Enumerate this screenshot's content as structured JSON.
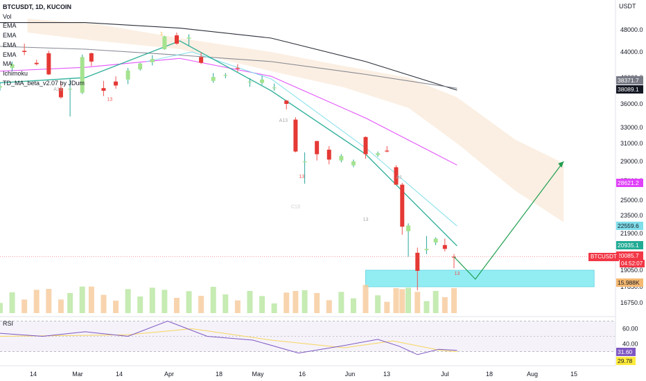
{
  "legend": {
    "title": "BTCUSDT, 1D, KUCOIN",
    "lines": [
      "Vol",
      "EMA",
      "EMA",
      "EMA",
      "EMA",
      "MA",
      "Ichimoku",
      "TD_MA_beta_v2.07 by JDum"
    ]
  },
  "price_axis": {
    "unit": "USDT",
    "ticks": [
      "48000.0",
      "44000.0",
      "40000.0",
      "36000.0",
      "33000.0",
      "31000.0",
      "29000.0",
      "27000.0",
      "25000.0",
      "23500.0",
      "21900.0",
      "19050.0",
      "17850.0",
      "16750.0"
    ]
  },
  "time_axis": {
    "ticks": [
      "14",
      "Mar",
      "14",
      "Apr",
      "18",
      "May",
      "16",
      "Jun",
      "13",
      "Jul",
      "18",
      "Aug",
      "15"
    ]
  },
  "price_badges": [
    {
      "label": "38371.7",
      "color": "#787b86"
    },
    {
      "label": "38089.1",
      "color": "#131722"
    },
    {
      "label": "28621.2",
      "color": "#e040fb"
    },
    {
      "label": "22559.6",
      "color": "#80deea"
    },
    {
      "label": "20935.1",
      "color": "#22ab94"
    },
    {
      "label": "20085.7",
      "color": "#f23645"
    },
    {
      "label": "15.988K",
      "color": "#f5b971"
    }
  ],
  "countdown": "04:52:07",
  "symbol_badge": "BTCUSDT",
  "rsi": {
    "label": "RSI",
    "ticks": [
      "60.00",
      "40.00"
    ],
    "badges": [
      {
        "label": "31.60",
        "color": "#7e57c2"
      },
      {
        "label": "29.78",
        "color": "#ffeb3b"
      }
    ]
  },
  "annotations": [
    "13",
    "13",
    "13",
    "A13",
    "A13",
    "C13",
    "A1",
    "1",
    "13"
  ],
  "chart_data": {
    "type": "candlestick",
    "title": "BTCUSDT, 1D, KUCOIN",
    "y_unit": "USDT",
    "ylim": [
      16500,
      50500
    ],
    "x_range": [
      "2022-02-01",
      "2022-08-20"
    ],
    "candles": [
      {
        "d": "2022-02-01",
        "o": 38500,
        "h": 39300,
        "l": 38000,
        "c": 38700
      },
      {
        "d": "2022-02-05",
        "o": 41500,
        "h": 42500,
        "l": 41000,
        "c": 42100
      },
      {
        "d": "2022-02-09",
        "o": 44200,
        "h": 45500,
        "l": 43500,
        "c": 44000
      },
      {
        "d": "2022-02-13",
        "o": 42300,
        "h": 42800,
        "l": 41900,
        "c": 42100
      },
      {
        "d": "2022-02-17",
        "o": 43800,
        "h": 44200,
        "l": 40400,
        "c": 40500
      },
      {
        "d": "2022-02-21",
        "o": 38400,
        "h": 39400,
        "l": 36800,
        "c": 37000
      },
      {
        "d": "2022-02-24",
        "o": 38300,
        "h": 39800,
        "l": 34400,
        "c": 38300
      },
      {
        "d": "2022-02-28",
        "o": 37700,
        "h": 43600,
        "l": 37500,
        "c": 43200
      },
      {
        "d": "2022-03-03",
        "o": 43800,
        "h": 43900,
        "l": 41800,
        "c": 42500
      },
      {
        "d": "2022-03-07",
        "o": 38400,
        "h": 39500,
        "l": 37200,
        "c": 38000
      },
      {
        "d": "2022-03-11",
        "o": 39400,
        "h": 40200,
        "l": 38300,
        "c": 38800
      },
      {
        "d": "2022-03-15",
        "o": 39700,
        "h": 41500,
        "l": 39000,
        "c": 41100
      },
      {
        "d": "2022-03-19",
        "o": 41300,
        "h": 42300,
        "l": 41100,
        "c": 42200
      },
      {
        "d": "2022-03-23",
        "o": 42400,
        "h": 43500,
        "l": 41900,
        "c": 42900
      },
      {
        "d": "2022-03-27",
        "o": 44500,
        "h": 46900,
        "l": 44400,
        "c": 46800
      },
      {
        "d": "2022-03-31",
        "o": 47000,
        "h": 47500,
        "l": 45300,
        "c": 45500
      },
      {
        "d": "2022-04-04",
        "o": 46400,
        "h": 47200,
        "l": 45100,
        "c": 46600
      },
      {
        "d": "2022-04-08",
        "o": 43200,
        "h": 43900,
        "l": 42100,
        "c": 42300
      },
      {
        "d": "2022-04-12",
        "o": 39500,
        "h": 40700,
        "l": 39200,
        "c": 40100
      },
      {
        "d": "2022-04-16",
        "o": 40400,
        "h": 40700,
        "l": 39900,
        "c": 40400
      },
      {
        "d": "2022-04-20",
        "o": 41500,
        "h": 42100,
        "l": 40900,
        "c": 41400
      },
      {
        "d": "2022-04-24",
        "o": 39400,
        "h": 39900,
        "l": 38600,
        "c": 39400
      },
      {
        "d": "2022-04-28",
        "o": 39200,
        "h": 40300,
        "l": 38900,
        "c": 39700
      },
      {
        "d": "2022-05-02",
        "o": 38500,
        "h": 39100,
        "l": 38000,
        "c": 38500
      },
      {
        "d": "2022-05-06",
        "o": 36500,
        "h": 36600,
        "l": 35300,
        "c": 36000
      },
      {
        "d": "2022-05-09",
        "o": 34000,
        "h": 34300,
        "l": 30000,
        "c": 30100
      },
      {
        "d": "2022-05-12",
        "o": 29000,
        "h": 30000,
        "l": 26700,
        "c": 29000
      },
      {
        "d": "2022-05-16",
        "o": 31300,
        "h": 31300,
        "l": 29100,
        "c": 29800
      },
      {
        "d": "2022-05-20",
        "o": 30300,
        "h": 30700,
        "l": 28700,
        "c": 29200
      },
      {
        "d": "2022-05-24",
        "o": 29100,
        "h": 29800,
        "l": 28900,
        "c": 29600
      },
      {
        "d": "2022-05-28",
        "o": 28600,
        "h": 29200,
        "l": 28400,
        "c": 29000
      },
      {
        "d": "2022-06-01",
        "o": 31800,
        "h": 31900,
        "l": 29300,
        "c": 29800
      },
      {
        "d": "2022-06-05",
        "o": 29700,
        "h": 30100,
        "l": 29500,
        "c": 29900
      },
      {
        "d": "2022-06-08",
        "o": 30200,
        "h": 30700,
        "l": 30000,
        "c": 30100
      },
      {
        "d": "2022-06-11",
        "o": 28400,
        "h": 28600,
        "l": 26600,
        "c": 26600
      },
      {
        "d": "2022-06-13",
        "o": 26600,
        "h": 26800,
        "l": 21800,
        "c": 22500
      },
      {
        "d": "2022-06-15",
        "o": 22100,
        "h": 22800,
        "l": 20100,
        "c": 22600
      },
      {
        "d": "2022-06-18",
        "o": 20400,
        "h": 20800,
        "l": 17600,
        "c": 19000
      },
      {
        "d": "2022-06-21",
        "o": 20600,
        "h": 21700,
        "l": 20300,
        "c": 20700
      },
      {
        "d": "2022-06-24",
        "o": 21200,
        "h": 21600,
        "l": 21000,
        "c": 21500
      },
      {
        "d": "2022-06-27",
        "o": 21000,
        "h": 21500,
        "l": 20500,
        "c": 20700
      },
      {
        "d": "2022-06-30",
        "o": 20100,
        "h": 20300,
        "l": 19200,
        "c": 20085.7
      }
    ],
    "series": [
      {
        "name": "EMA",
        "color": "#131722",
        "points": [
          [
            "2022-02-01",
            49300
          ],
          [
            "2022-03-01",
            49300
          ],
          [
            "2022-04-01",
            48300
          ],
          [
            "2022-05-01",
            46500
          ],
          [
            "2022-06-01",
            42500
          ],
          [
            "2022-07-01",
            38089.1
          ]
        ]
      },
      {
        "name": "MA",
        "color": "#787b86",
        "points": [
          [
            "2022-02-01",
            45000
          ],
          [
            "2022-03-01",
            44500
          ],
          [
            "2022-04-01",
            43500
          ],
          [
            "2022-05-01",
            42500
          ],
          [
            "2022-06-01",
            40500
          ],
          [
            "2022-07-01",
            38371.7
          ]
        ]
      },
      {
        "name": "EMA",
        "color": "#e040fb",
        "points": [
          [
            "2022-02-01",
            41000
          ],
          [
            "2022-03-01",
            41600
          ],
          [
            "2022-04-01",
            43000
          ],
          [
            "2022-05-01",
            40200
          ],
          [
            "2022-06-01",
            34200
          ],
          [
            "2022-07-01",
            28621.2
          ]
        ]
      },
      {
        "name": "EMA",
        "color": "#80deea",
        "points": [
          [
            "2022-03-21",
            42500
          ],
          [
            "2022-04-05",
            44000
          ],
          [
            "2022-05-01",
            39800
          ],
          [
            "2022-06-01",
            30500
          ],
          [
            "2022-07-01",
            22559.6
          ]
        ]
      },
      {
        "name": "EMA",
        "color": "#22ab94",
        "points": [
          [
            "2022-02-01",
            39200
          ],
          [
            "2022-03-01",
            40000
          ],
          [
            "2022-04-01",
            46000
          ],
          [
            "2022-05-01",
            38000
          ],
          [
            "2022-06-01",
            29800
          ],
          [
            "2022-07-01",
            20935.1
          ]
        ]
      }
    ],
    "projection": [
      [
        "2022-06-30",
        20085.7
      ],
      [
        "2022-07-07",
        18400
      ],
      [
        "2022-08-05",
        29000
      ]
    ],
    "support_zone": {
      "from": "2022-06-01",
      "to": "2022-08-15",
      "low": 17850,
      "high": 19050
    },
    "rsi_series": [
      [
        "2022-02-01",
        54
      ],
      [
        "2022-02-15",
        50
      ],
      [
        "2022-03-01",
        56
      ],
      [
        "2022-03-15",
        50
      ],
      [
        "2022-03-28",
        70
      ],
      [
        "2022-04-10",
        50
      ],
      [
        "2022-04-25",
        45
      ],
      [
        "2022-05-10",
        28
      ],
      [
        "2022-05-25",
        38
      ],
      [
        "2022-06-05",
        46
      ],
      [
        "2022-06-12",
        37
      ],
      [
        "2022-06-18",
        26
      ],
      [
        "2022-06-25",
        33
      ],
      [
        "2022-07-01",
        31.6
      ]
    ],
    "rsi_ma": [
      [
        "2022-02-01",
        50
      ],
      [
        "2022-03-15",
        52
      ],
      [
        "2022-04-05",
        60
      ],
      [
        "2022-05-01",
        45
      ],
      [
        "2022-05-25",
        35
      ],
      [
        "2022-06-10",
        44
      ],
      [
        "2022-06-25",
        32
      ],
      [
        "2022-07-01",
        29.78
      ]
    ],
    "rsi_levels": [
      70,
      30
    ]
  }
}
